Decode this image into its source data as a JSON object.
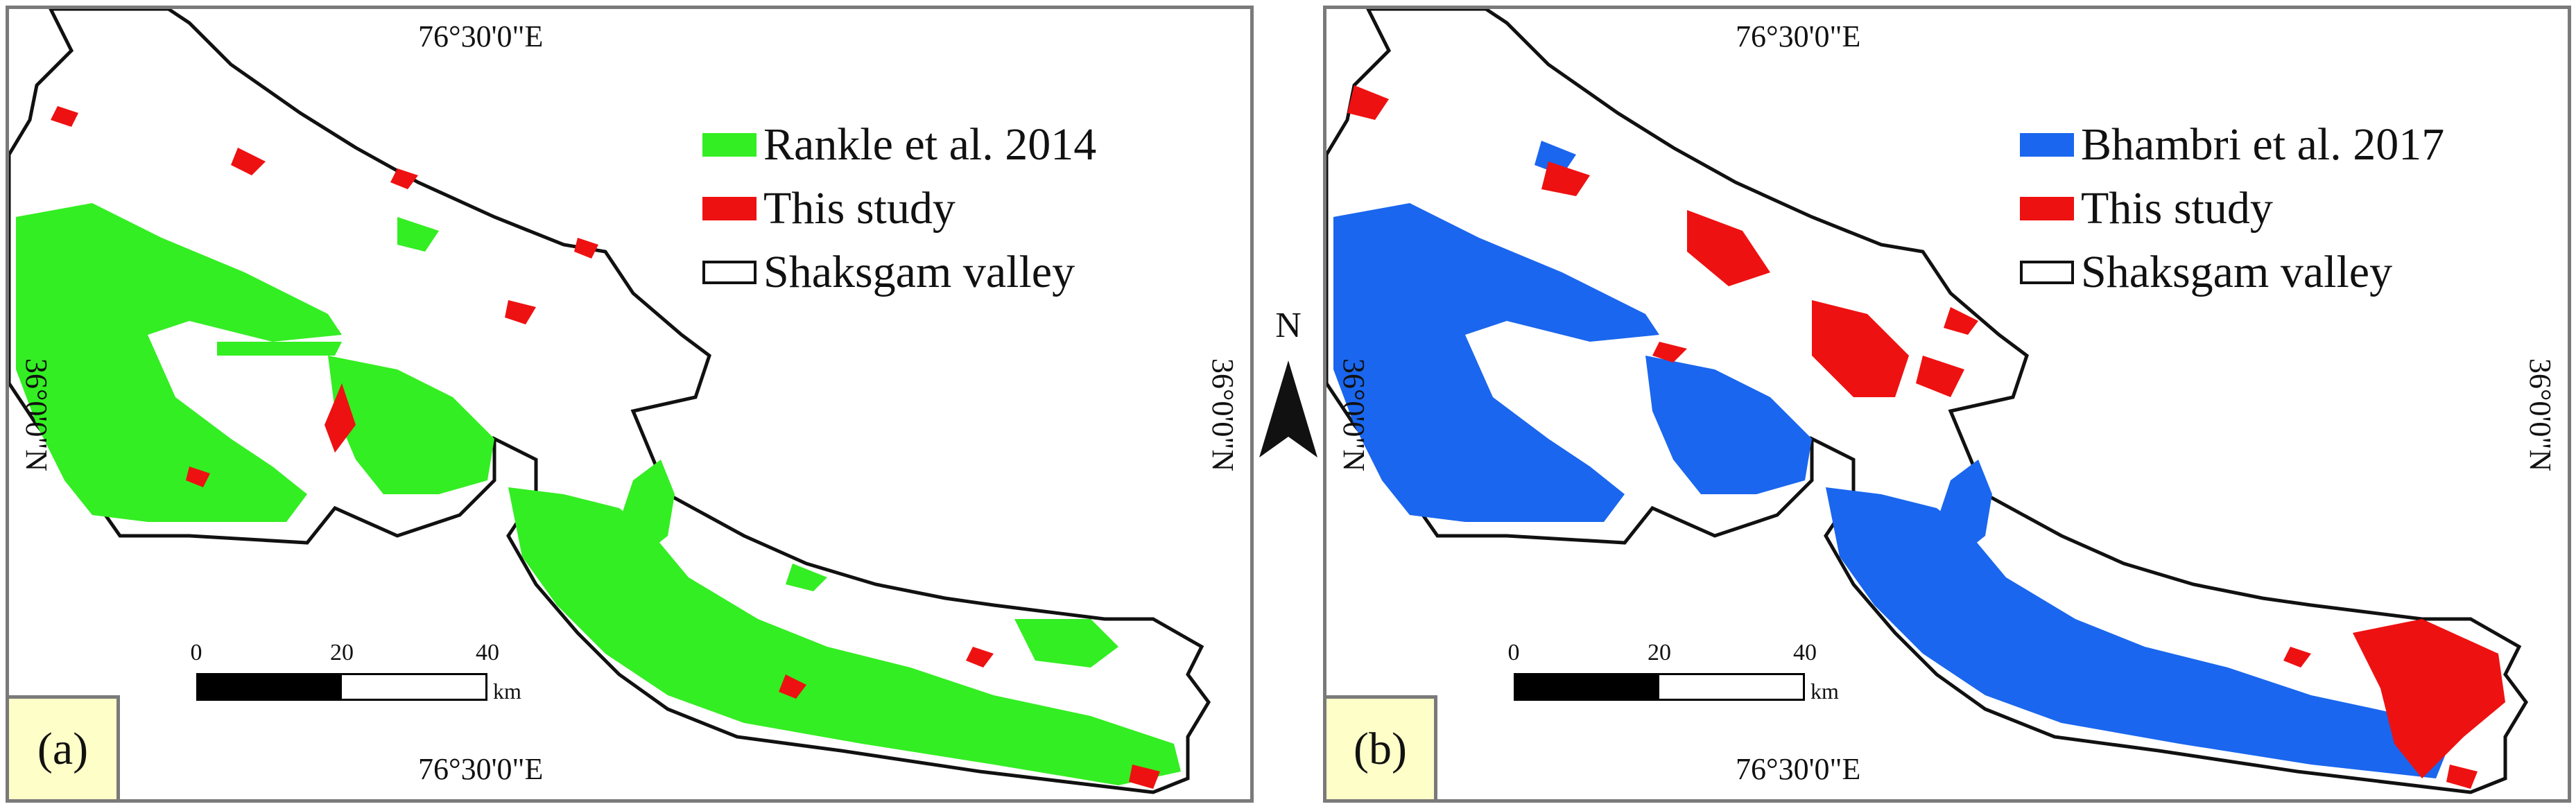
{
  "figure": {
    "north_label": "N",
    "coordinates": {
      "lon_label": "76°30'0\"E",
      "lat_label": "36°0'0\"N"
    },
    "scale": {
      "ticks": [
        "0",
        "20",
        "40"
      ],
      "unit": "km"
    },
    "panels": [
      {
        "label": "(a)",
        "legend": [
          {
            "label": "Rankle et al. 2014",
            "color": "#22ee11"
          },
          {
            "label": "This study",
            "color": "#ee1111"
          },
          {
            "label": "Shaksgam valley",
            "color": "#ffffff"
          }
        ]
      },
      {
        "label": "(b)",
        "legend": [
          {
            "label": "Bhambri et al. 2017",
            "color": "#1a66ee"
          },
          {
            "label": "This study",
            "color": "#ee1111"
          },
          {
            "label": "Shaksgam valley",
            "color": "#ffffff"
          }
        ]
      }
    ]
  }
}
